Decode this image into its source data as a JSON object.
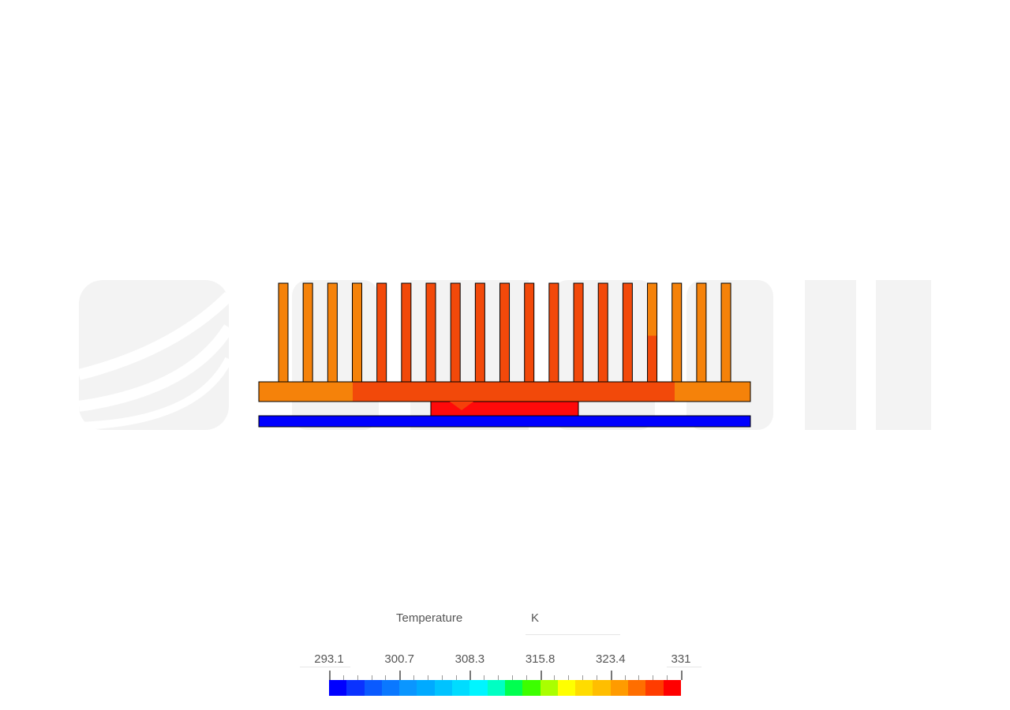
{
  "legend": {
    "title": "Temperature",
    "unit": "K",
    "tick_labels": [
      "293.1",
      "300.7",
      "308.3",
      "315.8",
      "323.4",
      "331"
    ],
    "colors": [
      "#0000ff",
      "#0a32ff",
      "#0a5aff",
      "#0a78ff",
      "#0a96ff",
      "#00aaff",
      "#00c3ff",
      "#00dcff",
      "#00f5ff",
      "#00ffc3",
      "#00ff50",
      "#3cff00",
      "#aaff00",
      "#ffff00",
      "#ffdc00",
      "#ffbe00",
      "#ff9b00",
      "#ff6e00",
      "#ff3c00",
      "#ff0000"
    ]
  },
  "colors": {
    "fin_cool": "#f5820a",
    "fin_hot": "#f2490a",
    "chip": "#ff0a0a",
    "plate": "#0000ff"
  },
  "watermark": "SIMSCALE"
}
